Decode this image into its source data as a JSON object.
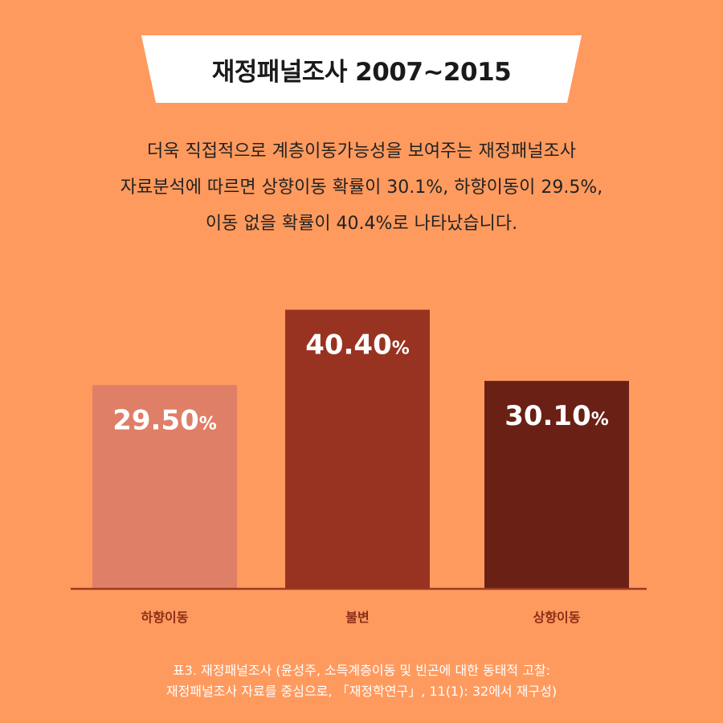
{
  "header": {
    "title": "재정패널조사 2007~2015"
  },
  "description": {
    "lines": [
      "더욱 직접적으로  계층이동가능성을 보여주는 재정패널조사",
      "자료분석에 따르면 상향이동 확률이 30.1%, 하향이동이 29.5%,",
      "이동 없을 확률이 40.4%로 나타났습니다."
    ]
  },
  "chart_data": {
    "type": "bar",
    "categories": [
      "하향이동",
      "불변",
      "상향이동"
    ],
    "values": [
      29.5,
      40.4,
      30.1
    ],
    "value_labels": [
      "29.50",
      "40.40",
      "30.10"
    ],
    "unit": "%",
    "ylim": [
      0,
      45
    ],
    "colors": [
      "#DF7F67",
      "#993321",
      "#6A2015"
    ],
    "grid": false,
    "legend": "none"
  },
  "source": {
    "lines": [
      "표3. 재정패널조사 (윤성주, 소득계층이동 및 빈곤에 대한 동태적 고찰:",
      "재정패널조사 자료를 중심으로, 「재정학연구」, 11(1): 32에서 재구성)"
    ]
  },
  "colors": {
    "background": "#FF9A5E",
    "baseline": "#9B3A22",
    "category_text": "#8B2E18",
    "banner": "#FFFFFF"
  }
}
